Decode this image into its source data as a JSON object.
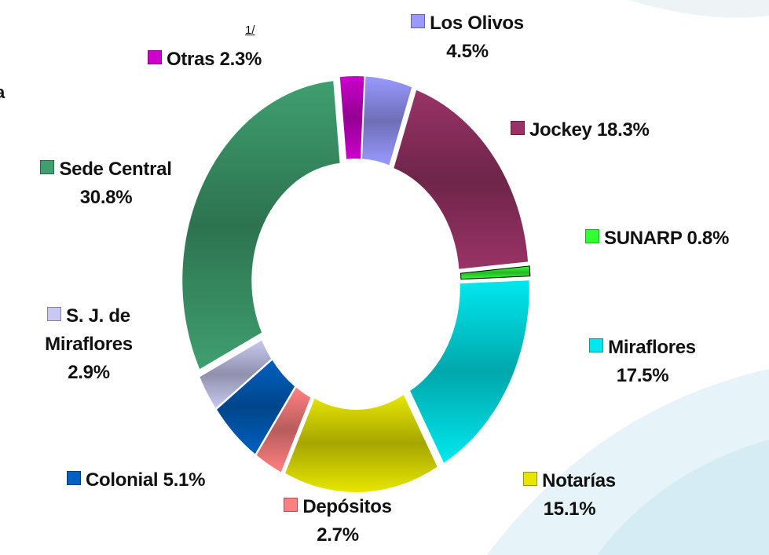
{
  "chart_data": {
    "type": "donut",
    "categories": [
      "Los Olivos",
      "Jockey",
      "SUNARP",
      "Miraflores",
      "Notarías",
      "Depósitos",
      "Colonial",
      "S. J. de Miraflores",
      "Sede Central",
      "Otras"
    ],
    "values": [
      4.5,
      18.3,
      0.8,
      17.5,
      15.1,
      2.7,
      5.1,
      2.9,
      30.8,
      2.3
    ],
    "value_labels": [
      "4.5%",
      "18.3%",
      "0.8%",
      "17.5%",
      "15.1%",
      "2.7%",
      "5.1%",
      "2.9%",
      "30.8%",
      "2.3%"
    ],
    "colors": [
      "#9999ff",
      "#993366",
      "#33ff33",
      "#00e8ee",
      "#e6e600",
      "#ff8080",
      "#0060c0",
      "#c8c8f0",
      "#3f9f6f",
      "#cc00cc"
    ],
    "annotations": [
      "1/",
      "a"
    ]
  }
}
